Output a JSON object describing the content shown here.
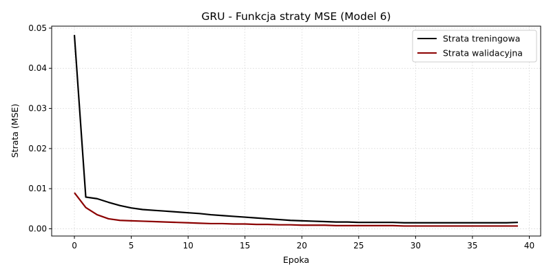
{
  "chart_data": {
    "type": "line",
    "title": "GRU - Funkcja straty MSE (Model 6)",
    "xlabel": "Epoka",
    "ylabel": "Strata (MSE)",
    "xlim": [
      -2,
      41
    ],
    "ylim": [
      -0.0018,
      0.0505
    ],
    "xticks": [
      0,
      5,
      10,
      15,
      20,
      25,
      30,
      35,
      40
    ],
    "yticks": [
      0.0,
      0.01,
      0.02,
      0.03,
      0.04,
      0.05
    ],
    "xtick_labels": [
      "0",
      "5",
      "10",
      "15",
      "20",
      "25",
      "30",
      "35",
      "40"
    ],
    "ytick_labels": [
      "0.00",
      "0.01",
      "0.02",
      "0.03",
      "0.04",
      "0.05"
    ],
    "grid": true,
    "legend_position": "upper-right",
    "x": [
      0,
      1,
      2,
      3,
      4,
      5,
      6,
      7,
      8,
      9,
      10,
      11,
      12,
      13,
      14,
      15,
      16,
      17,
      18,
      19,
      20,
      21,
      22,
      23,
      24,
      25,
      26,
      27,
      28,
      29,
      30,
      31,
      32,
      33,
      34,
      35,
      36,
      37,
      38,
      39
    ],
    "series": [
      {
        "name": "Strata treningowa",
        "color": "#000000",
        "values": [
          0.0483,
          0.0079,
          0.0075,
          0.0066,
          0.0058,
          0.0052,
          0.0048,
          0.0046,
          0.0044,
          0.0042,
          0.004,
          0.0038,
          0.0035,
          0.0033,
          0.0031,
          0.0029,
          0.0027,
          0.0025,
          0.0023,
          0.0021,
          0.002,
          0.0019,
          0.0018,
          0.0017,
          0.0017,
          0.0016,
          0.0016,
          0.0016,
          0.0016,
          0.0015,
          0.0015,
          0.0015,
          0.0015,
          0.0015,
          0.0015,
          0.0015,
          0.0015,
          0.0015,
          0.0015,
          0.0016
        ]
      },
      {
        "name": "Strata walidacyjna",
        "color": "#8b0000",
        "values": [
          0.009,
          0.0053,
          0.0035,
          0.0025,
          0.0021,
          0.002,
          0.0019,
          0.0018,
          0.0017,
          0.0016,
          0.0015,
          0.0014,
          0.0013,
          0.0013,
          0.0012,
          0.0012,
          0.0011,
          0.0011,
          0.001,
          0.001,
          0.0009,
          0.0009,
          0.0009,
          0.0008,
          0.0008,
          0.0008,
          0.0008,
          0.0008,
          0.0008,
          0.0007,
          0.0007,
          0.0007,
          0.0007,
          0.0007,
          0.0007,
          0.0007,
          0.0007,
          0.0007,
          0.0007,
          0.0007
        ]
      }
    ]
  }
}
